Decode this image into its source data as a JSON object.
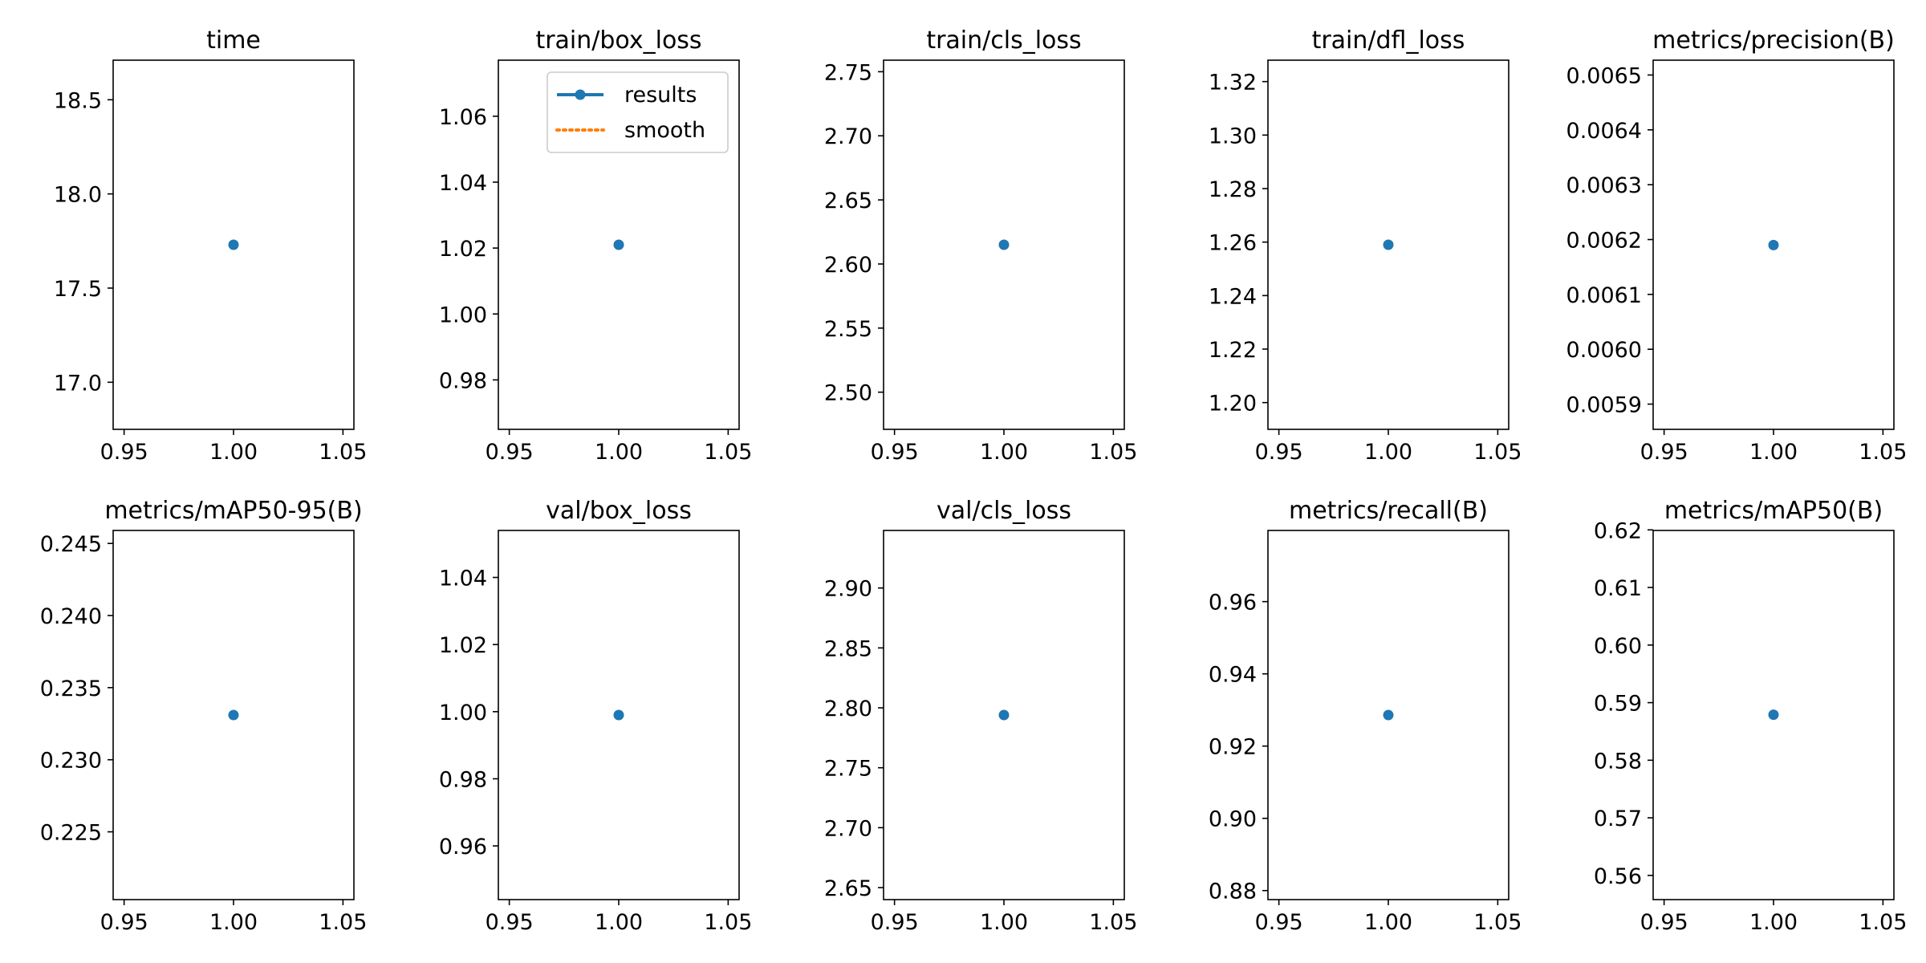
{
  "colors": {
    "results": "#1f77b4",
    "smooth": "#ff7f0e",
    "axis": "#000000",
    "background": "#ffffff"
  },
  "legend": {
    "location": "upper right",
    "panel_index": 1,
    "entries": [
      {
        "label": "results",
        "style": "solid line with dot marker",
        "color": "#1f77b4"
      },
      {
        "label": "smooth",
        "style": "dotted line",
        "color": "#ff7f0e"
      }
    ]
  },
  "chart_data": [
    {
      "type": "scatter",
      "title": "time",
      "x": [
        1.0
      ],
      "series": [
        {
          "name": "results",
          "values": [
            17.73
          ]
        }
      ],
      "xlim": [
        0.945,
        1.055
      ],
      "ylim": [
        16.75,
        18.71
      ],
      "xticks": [
        0.95,
        1.0,
        1.05
      ],
      "xtick_labels": [
        "0.95",
        "1.00",
        "1.05"
      ],
      "yticks": [
        17.0,
        17.5,
        18.0,
        18.5
      ],
      "ytick_labels": [
        "17.0",
        "17.5",
        "18.0",
        "18.5"
      ],
      "grid": false
    },
    {
      "type": "scatter",
      "title": "train/box_loss",
      "x": [
        1.0
      ],
      "series": [
        {
          "name": "results",
          "values": [
            1.021
          ]
        },
        {
          "name": "smooth",
          "values": []
        }
      ],
      "xlim": [
        0.945,
        1.055
      ],
      "ylim": [
        0.965,
        1.077
      ],
      "xticks": [
        0.95,
        1.0,
        1.05
      ],
      "xtick_labels": [
        "0.95",
        "1.00",
        "1.05"
      ],
      "yticks": [
        0.98,
        1.0,
        1.02,
        1.04,
        1.06
      ],
      "ytick_labels": [
        "0.98",
        "1.00",
        "1.02",
        "1.04",
        "1.06"
      ],
      "grid": false
    },
    {
      "type": "scatter",
      "title": "train/cls_loss",
      "x": [
        1.0
      ],
      "series": [
        {
          "name": "results",
          "values": [
            2.615
          ]
        }
      ],
      "xlim": [
        0.945,
        1.055
      ],
      "ylim": [
        2.471,
        2.759
      ],
      "xticks": [
        0.95,
        1.0,
        1.05
      ],
      "xtick_labels": [
        "0.95",
        "1.00",
        "1.05"
      ],
      "yticks": [
        2.5,
        2.55,
        2.6,
        2.65,
        2.7,
        2.75
      ],
      "ytick_labels": [
        "2.50",
        "2.55",
        "2.60",
        "2.65",
        "2.70",
        "2.75"
      ],
      "grid": false
    },
    {
      "type": "scatter",
      "title": "train/dfl_loss",
      "x": [
        1.0
      ],
      "series": [
        {
          "name": "results",
          "values": [
            1.259
          ]
        }
      ],
      "xlim": [
        0.945,
        1.055
      ],
      "ylim": [
        1.19,
        1.328
      ],
      "xticks": [
        0.95,
        1.0,
        1.05
      ],
      "xtick_labels": [
        "0.95",
        "1.00",
        "1.05"
      ],
      "yticks": [
        1.2,
        1.22,
        1.24,
        1.26,
        1.28,
        1.3,
        1.32
      ],
      "ytick_labels": [
        "1.20",
        "1.22",
        "1.24",
        "1.26",
        "1.28",
        "1.30",
        "1.32"
      ],
      "grid": false
    },
    {
      "type": "scatter",
      "title": "metrics/precision(B)",
      "x": [
        1.0
      ],
      "series": [
        {
          "name": "results",
          "values": [
            0.00619
          ]
        }
      ],
      "xlim": [
        0.945,
        1.055
      ],
      "ylim": [
        0.005854,
        0.006527
      ],
      "xticks": [
        0.95,
        1.0,
        1.05
      ],
      "xtick_labels": [
        "0.95",
        "1.00",
        "1.05"
      ],
      "yticks": [
        0.0059,
        0.006,
        0.0061,
        0.0062,
        0.0063,
        0.0064,
        0.0065
      ],
      "ytick_labels": [
        "0.0059",
        "0.0060",
        "0.0061",
        "0.0062",
        "0.0063",
        "0.0064",
        "0.0065"
      ],
      "grid": false
    },
    {
      "type": "scatter",
      "title": "metrics/mAP50-95(B)",
      "x": [
        1.0
      ],
      "series": [
        {
          "name": "results",
          "values": [
            0.2331
          ]
        }
      ],
      "xlim": [
        0.945,
        1.055
      ],
      "ylim": [
        0.2203,
        0.2459
      ],
      "xticks": [
        0.95,
        1.0,
        1.05
      ],
      "xtick_labels": [
        "0.95",
        "1.00",
        "1.05"
      ],
      "yticks": [
        0.225,
        0.23,
        0.235,
        0.24,
        0.245
      ],
      "ytick_labels": [
        "0.225",
        "0.230",
        "0.235",
        "0.240",
        "0.245"
      ],
      "grid": false
    },
    {
      "type": "scatter",
      "title": "val/box_loss",
      "x": [
        1.0
      ],
      "series": [
        {
          "name": "results",
          "values": [
            0.999
          ]
        }
      ],
      "xlim": [
        0.945,
        1.055
      ],
      "ylim": [
        0.944,
        1.054
      ],
      "xticks": [
        0.95,
        1.0,
        1.05
      ],
      "xtick_labels": [
        "0.95",
        "1.00",
        "1.05"
      ],
      "yticks": [
        0.96,
        0.98,
        1.0,
        1.02,
        1.04
      ],
      "ytick_labels": [
        "0.96",
        "0.98",
        "1.00",
        "1.02",
        "1.04"
      ],
      "grid": false
    },
    {
      "type": "scatter",
      "title": "val/cls_loss",
      "x": [
        1.0
      ],
      "series": [
        {
          "name": "results",
          "values": [
            2.794
          ]
        }
      ],
      "xlim": [
        0.945,
        1.055
      ],
      "ylim": [
        2.64,
        2.948
      ],
      "xticks": [
        0.95,
        1.0,
        1.05
      ],
      "xtick_labels": [
        "0.95",
        "1.00",
        "1.05"
      ],
      "yticks": [
        2.65,
        2.7,
        2.75,
        2.8,
        2.85,
        2.9
      ],
      "ytick_labels": [
        "2.65",
        "2.70",
        "2.75",
        "2.80",
        "2.85",
        "2.90"
      ],
      "grid": false
    },
    {
      "type": "scatter",
      "title": "metrics/recall(B)",
      "x": [
        1.0
      ],
      "series": [
        {
          "name": "results",
          "values": [
            0.9286
          ]
        }
      ],
      "xlim": [
        0.945,
        1.055
      ],
      "ylim": [
        0.8775,
        0.9797
      ],
      "xticks": [
        0.95,
        1.0,
        1.05
      ],
      "xtick_labels": [
        "0.95",
        "1.00",
        "1.05"
      ],
      "yticks": [
        0.88,
        0.9,
        0.92,
        0.94,
        0.96
      ],
      "ytick_labels": [
        "0.88",
        "0.90",
        "0.92",
        "0.94",
        "0.96"
      ],
      "grid": false
    },
    {
      "type": "scatter",
      "title": "metrics/mAP50(B)",
      "x": [
        1.0
      ],
      "series": [
        {
          "name": "results",
          "values": [
            0.5879
          ]
        }
      ],
      "xlim": [
        0.945,
        1.055
      ],
      "ylim": [
        0.5558,
        0.6199
      ],
      "xticks": [
        0.95,
        1.0,
        1.05
      ],
      "xtick_labels": [
        "0.95",
        "1.00",
        "1.05"
      ],
      "yticks": [
        0.56,
        0.57,
        0.58,
        0.59,
        0.6,
        0.61,
        0.62
      ],
      "ytick_labels": [
        "0.56",
        "0.57",
        "0.58",
        "0.59",
        "0.60",
        "0.61",
        "0.62"
      ],
      "grid": false
    }
  ]
}
